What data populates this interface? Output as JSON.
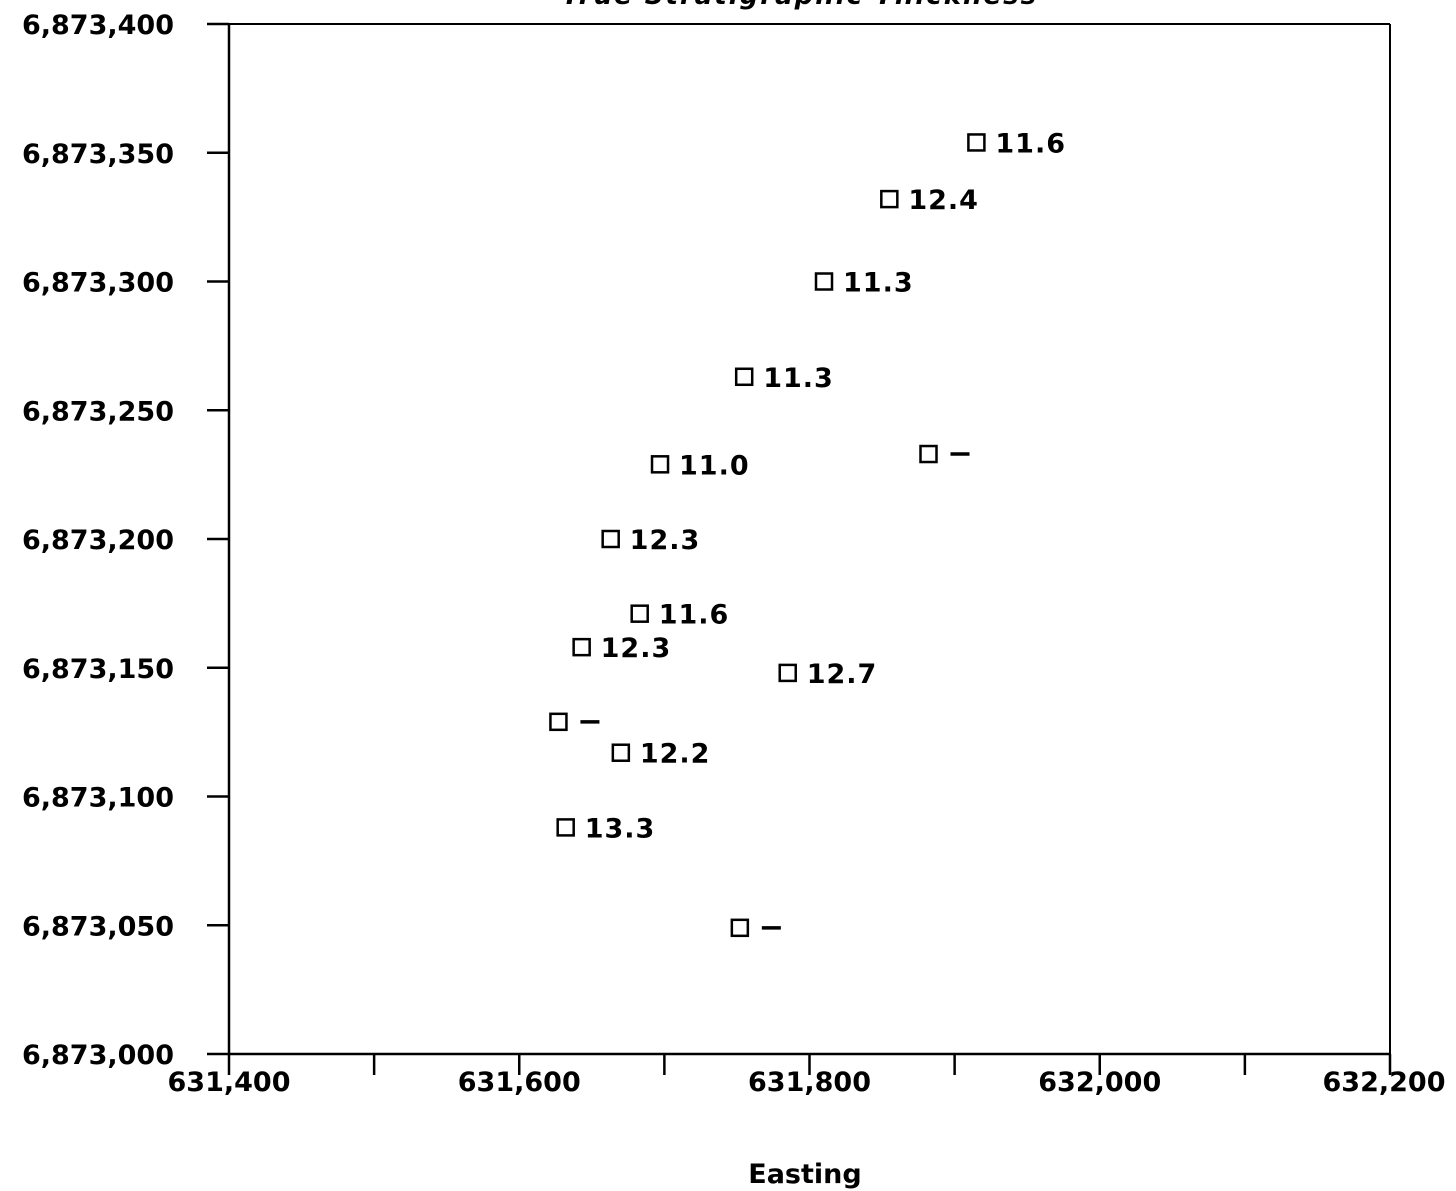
{
  "chart_data": {
    "type": "scatter",
    "title": "True Stratigraphic Thickness",
    "xlabel": "Easting",
    "ylabel": "",
    "xlim": [
      631400,
      632200
    ],
    "ylim": [
      6873000,
      6873400
    ],
    "x_ticks": [
      631400,
      631500,
      631600,
      631700,
      631800,
      631900,
      632000,
      632100,
      632200
    ],
    "x_tick_labels": [
      "631,400",
      "631,600",
      "631,800",
      "632,000",
      "632,200"
    ],
    "x_tick_label_values": [
      631400,
      631600,
      631800,
      632000,
      632200
    ],
    "y_ticks": [
      6873000,
      6873050,
      6873100,
      6873150,
      6873200,
      6873250,
      6873300,
      6873350,
      6873400
    ],
    "y_tick_labels": [
      "6,873,000",
      "6,873,050",
      "6,873,100",
      "6,873,150",
      "6,873,200",
      "6,873,250",
      "6,873,300",
      "6,873,350",
      "6,873,400"
    ],
    "grid": false,
    "marker": "open-square",
    "points": [
      {
        "x": 631915,
        "y": 6873354,
        "label": "11.6"
      },
      {
        "x": 631855,
        "y": 6873332,
        "label": "12.4"
      },
      {
        "x": 631810,
        "y": 6873300,
        "label": "11.3"
      },
      {
        "x": 631755,
        "y": 6873263,
        "label": "11.3"
      },
      {
        "x": 631882,
        "y": 6873233,
        "label": "–"
      },
      {
        "x": 631697,
        "y": 6873229,
        "label": "11.0"
      },
      {
        "x": 631663,
        "y": 6873200,
        "label": "12.3"
      },
      {
        "x": 631683,
        "y": 6873171,
        "label": "11.6"
      },
      {
        "x": 631643,
        "y": 6873158,
        "label": "12.3"
      },
      {
        "x": 631785,
        "y": 6873148,
        "label": "12.7"
      },
      {
        "x": 631627,
        "y": 6873129,
        "label": "–"
      },
      {
        "x": 631670,
        "y": 6873117,
        "label": "12.2"
      },
      {
        "x": 631632,
        "y": 6873088,
        "label": "13.3"
      },
      {
        "x": 631752,
        "y": 6873049,
        "label": "–"
      }
    ]
  }
}
